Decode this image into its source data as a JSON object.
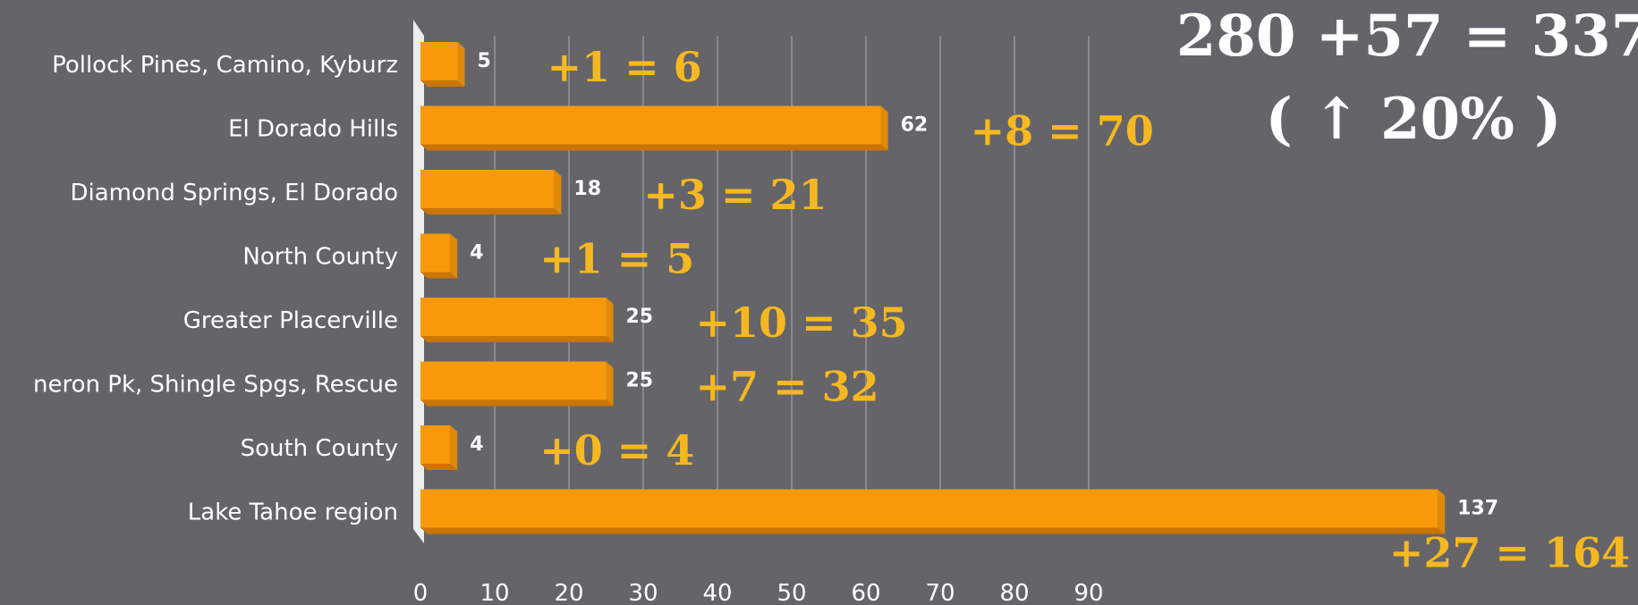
{
  "chart_data": {
    "type": "bar",
    "orientation": "horizontal",
    "categories": [
      "Pollock Pines, Camino, Kyburz",
      "El Dorado Hills",
      "Diamond Springs, El Dorado",
      "North County",
      "Greater Placerville",
      "neron Pk, Shingle Spgs, Rescue",
      "South County",
      "Lake Tahoe region"
    ],
    "values": [
      5,
      62,
      18,
      4,
      25,
      25,
      4,
      137
    ],
    "value_labels": [
      "5",
      "62",
      "18",
      "4",
      "25",
      "25",
      "4",
      "137"
    ],
    "annotations": [
      "+1 = 6",
      "+8 = 70",
      "+3 = 21",
      "+1 = 5",
      "+10 = 35",
      "+7 = 32",
      "+0 = 4",
      "+27 = 164"
    ],
    "x_ticks": [
      0,
      10,
      20,
      30,
      40,
      50,
      60,
      70,
      80,
      90
    ],
    "summary_line1": "280 +57 = 337",
    "summary_line2": "( ↑ 20% )",
    "grid": true,
    "colors": {
      "background": "#656468",
      "bar": "#f7990a",
      "bar_dark": "#c97508",
      "grid": "#8a898d",
      "annotation": "#f5b820",
      "text": "#ffffff"
    }
  }
}
